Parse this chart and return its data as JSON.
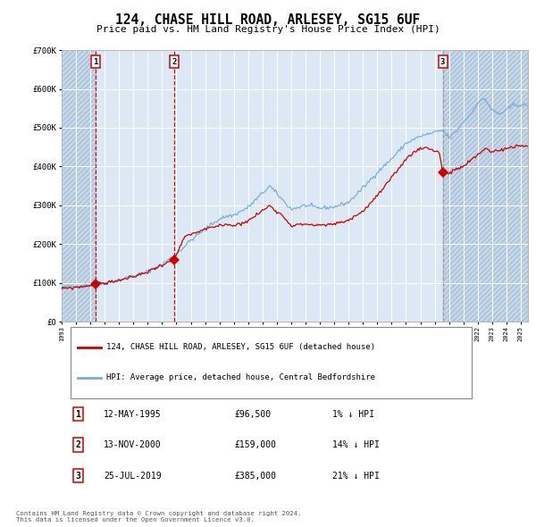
{
  "title": "124, CHASE HILL ROAD, ARLESEY, SG15 6UF",
  "subtitle": "Price paid vs. HM Land Registry's House Price Index (HPI)",
  "sale_dates_num": [
    1995.36,
    2000.87,
    2019.56
  ],
  "sale_prices": [
    96500,
    159000,
    385000
  ],
  "sale_labels": [
    "1",
    "2",
    "3"
  ],
  "sale_label_dates": [
    "12-MAY-1995",
    "13-NOV-2000",
    "25-JUL-2019"
  ],
  "sale_label_prices": [
    "£96,500",
    "£159,000",
    "£385,000"
  ],
  "sale_label_hpi": [
    "1% ↓ HPI",
    "14% ↓ HPI",
    "21% ↓ HPI"
  ],
  "legend_red": "124, CHASE HILL ROAD, ARLESEY, SG15 6UF (detached house)",
  "legend_blue": "HPI: Average price, detached house, Central Bedfordshire",
  "footer": "Contains HM Land Registry data © Crown copyright and database right 2024.\nThis data is licensed under the Open Government Licence v3.0.",
  "ylim": [
    0,
    700000
  ],
  "yticks": [
    0,
    100000,
    200000,
    300000,
    400000,
    500000,
    600000,
    700000
  ],
  "xlim_start": 1993.0,
  "xlim_end": 2025.5,
  "background_color": "#ffffff",
  "plot_bg_color": "#dce9f5",
  "hatch_bg_color": "#c8d8ea",
  "grid_color": "#ffffff",
  "red_line_color": "#cc0000",
  "blue_line_color": "#7aaed6",
  "diamond_color": "#cc0000",
  "vline_color_red": "#cc0000",
  "vline_color_grey": "#999999",
  "label_box_color": "#cc0000"
}
